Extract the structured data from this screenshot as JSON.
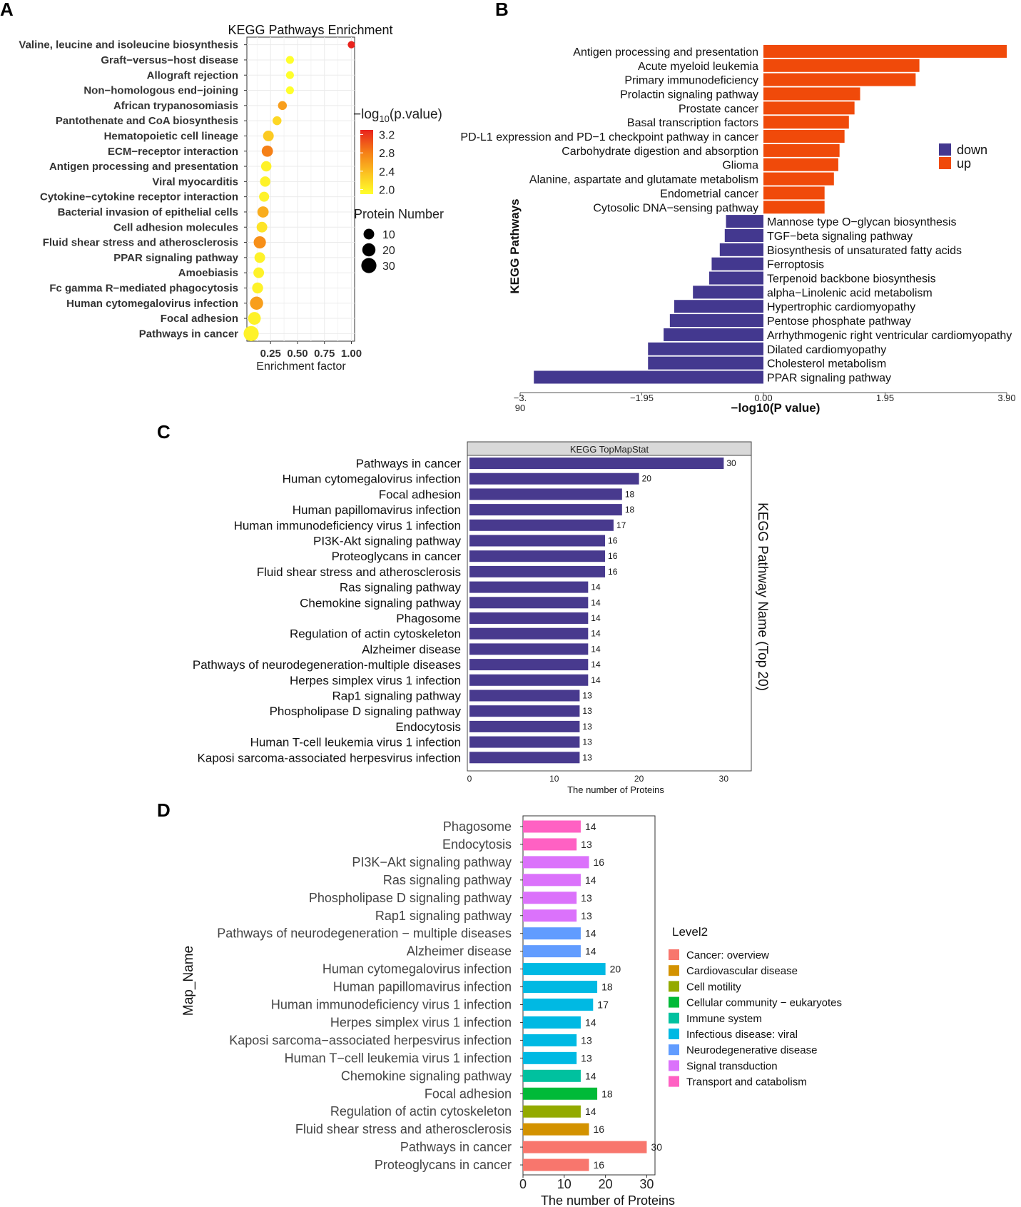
{
  "panels": {
    "a": "A",
    "b": "B",
    "c": "C",
    "d": "D"
  },
  "chart_data": [
    {
      "id": "A",
      "type": "scatter",
      "title": "KEGG Pathways Enrichment",
      "xlabel": "Enrichment factor",
      "xticks": [
        "0.25",
        "0.50",
        "0.75",
        "1.00"
      ],
      "xlim": [
        0.03,
        1.03
      ],
      "pathways": [
        {
          "name": "Valine, leucine and isoleucine biosynthesis",
          "ef": 1.0,
          "p": 3.3,
          "n": 2
        },
        {
          "name": "Graft−versus−host disease",
          "ef": 0.43,
          "p": 1.9,
          "n": 3
        },
        {
          "name": "Allograft rejection",
          "ef": 0.43,
          "p": 1.9,
          "n": 3
        },
        {
          "name": "Non−homologous end−joining",
          "ef": 0.43,
          "p": 1.9,
          "n": 3
        },
        {
          "name": "African trypanosomiasis",
          "ef": 0.36,
          "p": 2.6,
          "n": 5
        },
        {
          "name": "Pantothenate and CoA biosynthesis",
          "ef": 0.31,
          "p": 2.2,
          "n": 5
        },
        {
          "name": "Hematopoietic cell lineage",
          "ef": 0.23,
          "p": 2.3,
          "n": 10
        },
        {
          "name": "ECM−receptor interaction",
          "ef": 0.22,
          "p": 2.8,
          "n": 12
        },
        {
          "name": "Antigen processing and presentation",
          "ef": 0.21,
          "p": 2.0,
          "n": 9
        },
        {
          "name": "Viral myocarditis",
          "ef": 0.2,
          "p": 2.0,
          "n": 9
        },
        {
          "name": "Cytokine−cytokine receptor interaction",
          "ef": 0.19,
          "p": 2.0,
          "n": 8
        },
        {
          "name": "Bacterial invasion of epithelial cells",
          "ef": 0.18,
          "p": 2.5,
          "n": 12
        },
        {
          "name": "Cell adhesion molecules",
          "ef": 0.17,
          "p": 2.1,
          "n": 10
        },
        {
          "name": "Fluid shear stress and atherosclerosis",
          "ef": 0.15,
          "p": 2.7,
          "n": 16
        },
        {
          "name": "PPAR signaling pathway",
          "ef": 0.15,
          "p": 2.0,
          "n": 10
        },
        {
          "name": "Amoebiasis",
          "ef": 0.14,
          "p": 2.0,
          "n": 10
        },
        {
          "name": "Fc gamma R−mediated phagocytosis",
          "ef": 0.13,
          "p": 2.0,
          "n": 11
        },
        {
          "name": "Human cytomegalovirus infection",
          "ef": 0.12,
          "p": 2.6,
          "n": 20
        },
        {
          "name": "Focal adhesion",
          "ef": 0.1,
          "p": 2.0,
          "n": 18
        },
        {
          "name": "Pathways in cancer",
          "ef": 0.07,
          "p": 2.0,
          "n": 30
        }
      ],
      "color_legend": {
        "title_prefix": "−log",
        "title_sub": "10",
        "title_suffix": "(p.value)",
        "ticks": [
          "3.2",
          "2.8",
          "2.4",
          "2.0"
        ],
        "range": [
          1.9,
          3.3
        ]
      },
      "size_legend": {
        "title": "Protein Number",
        "items": [
          "10",
          "20",
          "30"
        ]
      }
    },
    {
      "id": "B",
      "type": "bar",
      "ylabel": "KEGG Pathways",
      "xlabel": "−log10(P value)",
      "xlim": [
        -3.9,
        3.9
      ],
      "xticks": [
        {
          "v": -3.9,
          "line1": "−3.",
          "line2": "90"
        },
        {
          "v": -1.95,
          "line1": "−1.95",
          "line2": ""
        },
        {
          "v": 0,
          "line1": "0.00",
          "line2": ""
        },
        {
          "v": 1.95,
          "line1": "1.95",
          "line2": ""
        },
        {
          "v": 3.9,
          "line1": "3.90",
          "line2": ""
        }
      ],
      "legend": [
        {
          "label": "down",
          "color": "#43388f"
        },
        {
          "label": "up",
          "color": "#f04a0a"
        }
      ],
      "series": [
        {
          "name": "Antigen processing and presentation",
          "value": 3.9,
          "dir": "up"
        },
        {
          "name": "Acute myeloid leukemia",
          "value": 2.5,
          "dir": "up"
        },
        {
          "name": "Primary immunodeficiency",
          "value": 2.44,
          "dir": "up"
        },
        {
          "name": "Prolactin signaling pathway",
          "value": 1.55,
          "dir": "up"
        },
        {
          "name": "Prostate cancer",
          "value": 1.46,
          "dir": "up"
        },
        {
          "name": "Basal transcription factors",
          "value": 1.37,
          "dir": "up"
        },
        {
          "name": "PD-L1 expression and PD−1 checkpoint pathway in cancer",
          "value": 1.3,
          "dir": "up"
        },
        {
          "name": "Carbohydrate digestion and absorption",
          "value": 1.22,
          "dir": "up"
        },
        {
          "name": "Glioma",
          "value": 1.2,
          "dir": "up"
        },
        {
          "name": "Alanine, aspartate and glutamate metabolism",
          "value": 1.13,
          "dir": "up"
        },
        {
          "name": "Endometrial cancer",
          "value": 0.98,
          "dir": "up"
        },
        {
          "name": "Cytosolic DNA−sensing pathway",
          "value": 0.98,
          "dir": "up"
        },
        {
          "name": "Mannose type O−glycan biosynthesis",
          "value": -0.6,
          "dir": "down"
        },
        {
          "name": "TGF−beta signaling pathway",
          "value": -0.62,
          "dir": "down"
        },
        {
          "name": "Biosynthesis of unsaturated fatty acids",
          "value": -0.7,
          "dir": "down"
        },
        {
          "name": "Ferroptosis",
          "value": -0.83,
          "dir": "down"
        },
        {
          "name": "Terpenoid backbone biosynthesis",
          "value": -0.87,
          "dir": "down"
        },
        {
          "name": "alpha−Linolenic acid metabolism",
          "value": -1.13,
          "dir": "down"
        },
        {
          "name": "Hypertrophic cardiomyopathy",
          "value": -1.43,
          "dir": "down"
        },
        {
          "name": "Pentose phosphate pathway",
          "value": -1.5,
          "dir": "down"
        },
        {
          "name": "Arrhythmogenic right ventricular cardiomyopathy",
          "value": -1.6,
          "dir": "down"
        },
        {
          "name": "Dilated cardiomyopathy",
          "value": -1.85,
          "dir": "down"
        },
        {
          "name": "Cholesterol metabolism",
          "value": -1.85,
          "dir": "down"
        },
        {
          "name": "PPAR signaling pathway",
          "value": -3.68,
          "dir": "down"
        }
      ]
    },
    {
      "id": "C",
      "type": "bar",
      "title": "KEGG TopMapStat",
      "xlabel": "The number of Proteins",
      "ylabel": "KEGG Pathway Name (Top 20)",
      "xlim": [
        0,
        33
      ],
      "xticks": [
        0,
        10,
        20,
        30
      ],
      "categories": [
        "Pathways in cancer",
        "Human cytomegalovirus infection",
        "Focal adhesion",
        "Human papillomavirus infection",
        "Human immunodeficiency virus 1 infection",
        "PI3K-Akt signaling pathway",
        "Proteoglycans in cancer",
        "Fluid shear stress and atherosclerosis",
        "Ras signaling pathway",
        "Chemokine signaling pathway",
        "Phagosome",
        "Regulation of actin cytoskeleton",
        "Alzheimer disease",
        "Pathways of neurodegeneration-multiple diseases",
        "Herpes simplex virus 1 infection",
        "Rap1 signaling pathway",
        "Phospholipase D signaling pathway",
        "Endocytosis",
        "Human T-cell leukemia virus 1 infection",
        "Kaposi sarcoma-associated herpesvirus infection"
      ],
      "values": [
        30,
        20,
        18,
        18,
        17,
        16,
        16,
        16,
        14,
        14,
        14,
        14,
        14,
        14,
        14,
        13,
        13,
        13,
        13,
        13
      ]
    },
    {
      "id": "D",
      "type": "bar",
      "xlabel": "The number of Proteins",
      "ylabel": "Map_Name",
      "xlim": [
        0,
        32
      ],
      "xticks": [
        0,
        10,
        20,
        30
      ],
      "legend_title": "Level2",
      "legend": [
        {
          "label": "Cancer: overview",
          "color": "#f8766d"
        },
        {
          "label": "Cardiovascular disease",
          "color": "#d39200"
        },
        {
          "label": "Cell motility",
          "color": "#93aa00"
        },
        {
          "label": "Cellular community − eukaryotes",
          "color": "#00ba38"
        },
        {
          "label": "Immune system",
          "color": "#00c19f"
        },
        {
          "label": "Infectious disease: viral",
          "color": "#00b9e3"
        },
        {
          "label": "Neurodegenerative disease",
          "color": "#619cff"
        },
        {
          "label": "Signal transduction",
          "color": "#db72fb"
        },
        {
          "label": "Transport and catabolism",
          "color": "#ff61c3"
        }
      ],
      "series": [
        {
          "name": "Phagosome",
          "value": 14,
          "group": 8
        },
        {
          "name": "Endocytosis",
          "value": 13,
          "group": 8
        },
        {
          "name": "PI3K−Akt signaling pathway",
          "value": 16,
          "group": 7
        },
        {
          "name": "Ras signaling pathway",
          "value": 14,
          "group": 7
        },
        {
          "name": "Phospholipase D signaling pathway",
          "value": 13,
          "group": 7
        },
        {
          "name": "Rap1 signaling pathway",
          "value": 13,
          "group": 7
        },
        {
          "name": "Pathways of neurodegeneration − multiple diseases",
          "value": 14,
          "group": 6
        },
        {
          "name": "Alzheimer disease",
          "value": 14,
          "group": 6
        },
        {
          "name": "Human cytomegalovirus infection",
          "value": 20,
          "group": 5
        },
        {
          "name": "Human papillomavirus infection",
          "value": 18,
          "group": 5
        },
        {
          "name": "Human immunodeficiency virus 1 infection",
          "value": 17,
          "group": 5
        },
        {
          "name": "Herpes simplex virus 1 infection",
          "value": 14,
          "group": 5
        },
        {
          "name": "Kaposi sarcoma−associated herpesvirus infection",
          "value": 13,
          "group": 5
        },
        {
          "name": "Human T−cell leukemia virus 1 infection",
          "value": 13,
          "group": 5
        },
        {
          "name": "Chemokine signaling pathway",
          "value": 14,
          "group": 4
        },
        {
          "name": "Focal adhesion",
          "value": 18,
          "group": 3
        },
        {
          "name": "Regulation of actin cytoskeleton",
          "value": 14,
          "group": 2
        },
        {
          "name": "Fluid shear stress and atherosclerosis",
          "value": 16,
          "group": 1
        },
        {
          "name": "Pathways in cancer",
          "value": 30,
          "group": 0
        },
        {
          "name": "Proteoglycans in cancer",
          "value": 16,
          "group": 0
        }
      ]
    }
  ]
}
